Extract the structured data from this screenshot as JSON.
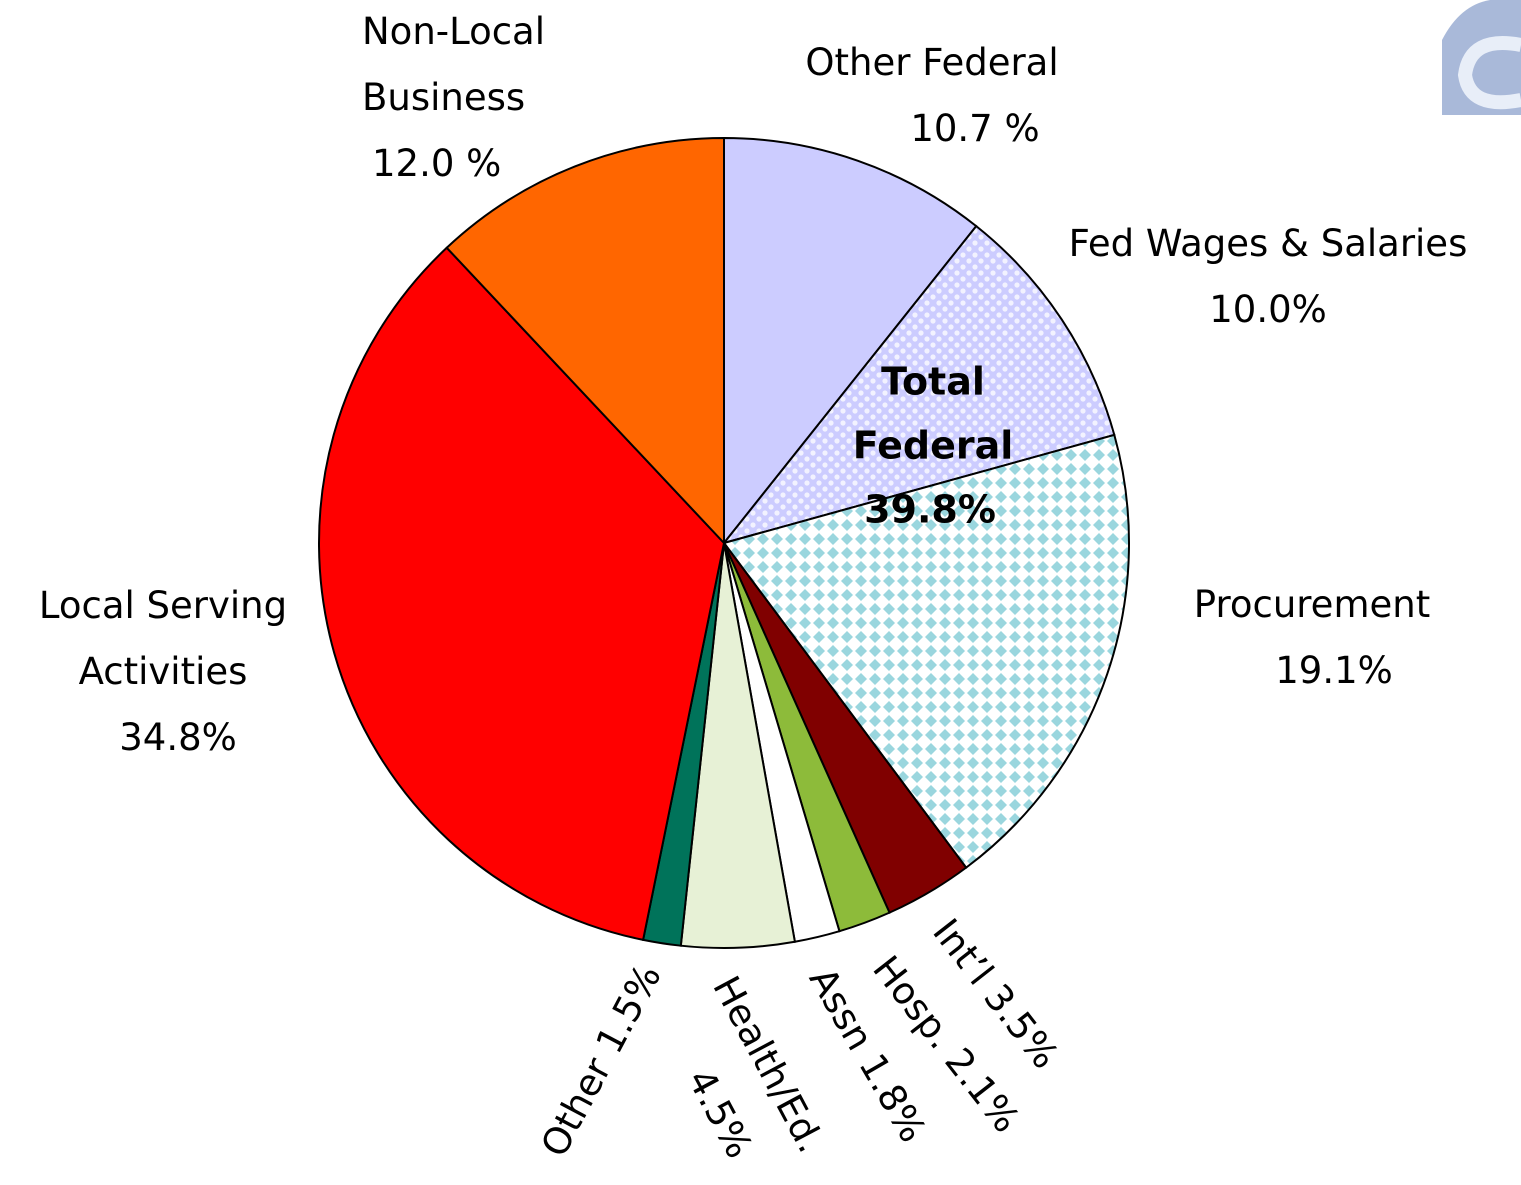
{
  "chart_data": {
    "type": "pie",
    "categories": [
      [
        "Other Federal"
      ],
      [
        "Fed Wages & Salaries"
      ],
      [
        "Procurement"
      ],
      [
        "Int’l"
      ],
      [
        "Hosp."
      ],
      [
        "Assn"
      ],
      [
        "Health/Ed."
      ],
      [
        "Other"
      ],
      [
        "Local Serving",
        "Activities"
      ],
      [
        "Non-Local",
        "Business"
      ]
    ],
    "values": [
      10.7,
      10.0,
      19.1,
      3.5,
      2.1,
      1.8,
      4.5,
      1.5,
      34.8,
      12.0
    ],
    "value_labels": [
      "10.7 %",
      "10.0%",
      "19.1%",
      "3.5%",
      "2.1%",
      "1.8%",
      "4.5%",
      "1.5%",
      "34.8%",
      "12.0 %"
    ],
    "colors": [
      "#ccccff",
      "#ccccff",
      "#9ad6de",
      "#800000",
      "#8dbb3a",
      "#ffffff",
      "#e7f1d6",
      "#00735a",
      "#ff0000",
      "#ff6600"
    ],
    "pattern": [
      "none",
      "dots",
      "diamonds",
      "none",
      "none",
      "none",
      "none",
      "none",
      "none",
      "none"
    ],
    "annotation": {
      "lines": [
        "Total",
        "Federal"
      ],
      "label": "39.8%"
    }
  }
}
